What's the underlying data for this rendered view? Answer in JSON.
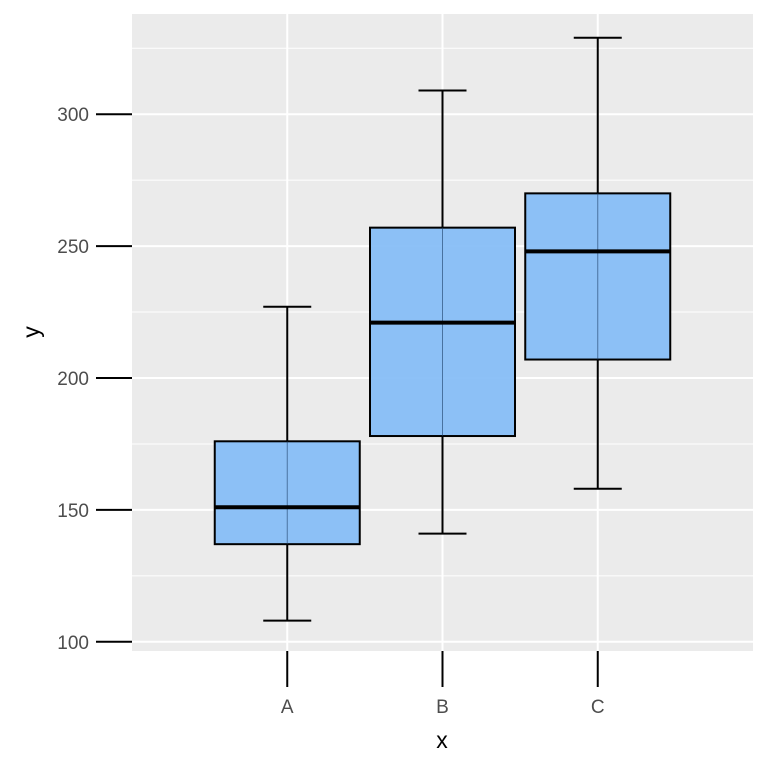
{
  "chart_data": {
    "type": "boxplot",
    "title": "",
    "xlabel": "x",
    "ylabel": "y",
    "categories": [
      "A",
      "B",
      "C"
    ],
    "boxes": [
      {
        "category": "A",
        "whisker_low": 108,
        "q1": 137,
        "median": 151,
        "q3": 176,
        "whisker_high": 227
      },
      {
        "category": "B",
        "whisker_low": 141,
        "q1": 178,
        "median": 221,
        "q3": 257,
        "whisker_high": 309
      },
      {
        "category": "C",
        "whisker_low": 158,
        "q1": 207,
        "median": 248,
        "q3": 270,
        "whisker_high": 329
      }
    ],
    "yticks": [
      100,
      150,
      200,
      250,
      300
    ],
    "ylim": [
      96.5,
      338
    ],
    "grid": true,
    "colors": {
      "panel": "#ebebeb",
      "grid": "#ffffff",
      "box_fill": "#87bef7",
      "box_stroke": "#000000",
      "tick_text": "#4d4d4d"
    }
  }
}
